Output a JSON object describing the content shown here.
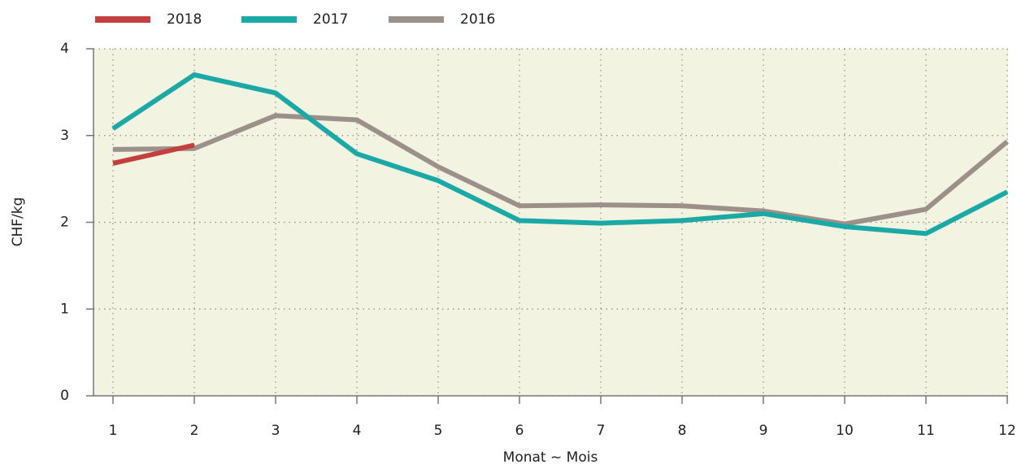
{
  "chart_data": {
    "type": "line",
    "x": [
      1,
      2,
      3,
      4,
      5,
      6,
      7,
      8,
      9,
      10,
      11,
      12
    ],
    "series": [
      {
        "name": "2018",
        "color": "#c3403f",
        "values": [
          2.68,
          2.89,
          null,
          null,
          null,
          null,
          null,
          null,
          null,
          null,
          null,
          null
        ]
      },
      {
        "name": "2017",
        "color": "#1ba9a6",
        "values": [
          3.08,
          3.7,
          3.49,
          2.79,
          2.48,
          2.02,
          1.99,
          2.02,
          2.1,
          1.95,
          1.87,
          2.35
        ]
      },
      {
        "name": "2016",
        "color": "#9b918a",
        "values": [
          2.84,
          2.85,
          3.23,
          3.18,
          2.64,
          2.19,
          2.2,
          2.19,
          2.13,
          1.98,
          2.15,
          2.93
        ]
      }
    ],
    "xlim": [
      0.76,
      12.01
    ],
    "xticks": [
      1,
      2,
      3,
      4,
      5,
      6,
      7,
      8,
      9,
      10,
      11,
      12
    ],
    "ylim": [
      0,
      4
    ],
    "yticks": [
      0,
      1,
      2,
      3,
      4
    ],
    "y_label": "CHF/kg",
    "x_label": "Monat ~ Mois",
    "grid": true,
    "legend": "top"
  }
}
